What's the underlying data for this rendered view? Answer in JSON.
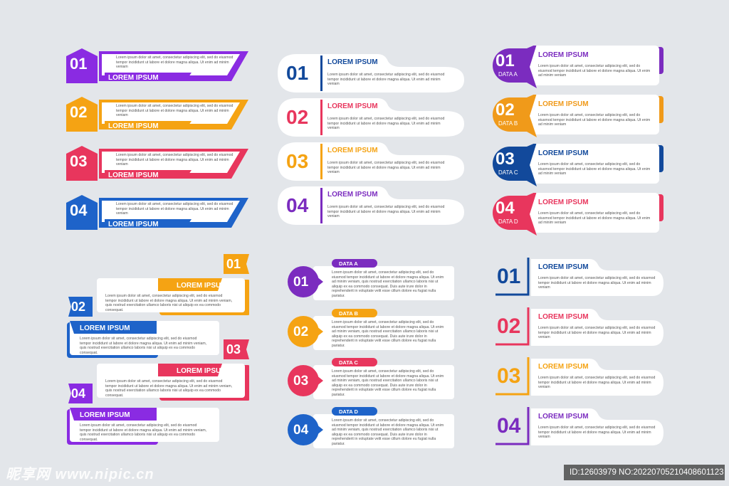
{
  "body_text": "Lorem ipsum dolor sit amet, consectetur adipiscing elit, sed do eiusmod tempor incididunt ut labore et dolore magna aliqua. Ut enim ad minim veniam",
  "body_text_long": "Lorem ipsum dolor sit amet, consectetur adipiscing elit, sed do eiusmod tempor incididunt ut labore et dolore magna aliqua. Ut enim ad minim veniam, quis nostrud exercitation ullamco laboris nisi ut aliquip ex ea commodo consequat.",
  "body_text_data": "Lorem ipsum dolor sit amet, consectetur adipiscing elit, sed do eiusmod tempor incididunt ut labore et dolore magna aliqua. Ut enim ad minim veniam, quis nostrud exercitation ullamco laboris nisi ut aliquip ex ea commodo consequat. Duis aute irure dolor in reprehenderit in voluptate velit esse cillum dolore eu fugiat nulla pariatur.",
  "colors": {
    "purple": "#7b2cbf",
    "orange": "#f5a313",
    "pink": "#e8365d",
    "blue": "#1e63c9",
    "navy": "#12499b",
    "background": "#e3e6ea"
  },
  "panel1": [
    {
      "num": "01",
      "title": "LOREM IPSUM",
      "color": "#8a2be2"
    },
    {
      "num": "02",
      "title": "LOREM IPSUM",
      "color": "#f5a313"
    },
    {
      "num": "03",
      "title": "LOREM IPSUM",
      "color": "#e8365d"
    },
    {
      "num": "04",
      "title": "LOREM IPSUM",
      "color": "#1e63c9"
    }
  ],
  "panel2": [
    {
      "num": "01",
      "title": "LOREM IPSUM",
      "color": "#12499b"
    },
    {
      "num": "02",
      "title": "LOREM IPSUM",
      "color": "#e8365d"
    },
    {
      "num": "03",
      "title": "LOREM IPSUM",
      "color": "#f5a313"
    },
    {
      "num": "04",
      "title": "LOREM IPSUM",
      "color": "#7b2cbf"
    }
  ],
  "panel3": [
    {
      "num": "01",
      "sub": "DATA A",
      "title": "LOREM IPSUM",
      "color": "#7b2cbf"
    },
    {
      "num": "02",
      "sub": "DATA B",
      "title": "LOREM IPSUM",
      "color": "#f09a1a"
    },
    {
      "num": "03",
      "sub": "DATA C",
      "title": "LOREM IPSUM",
      "color": "#12499b"
    },
    {
      "num": "04",
      "sub": "DATA D",
      "title": "LOREM IPSUM",
      "color": "#e8365d"
    }
  ],
  "panel4": [
    {
      "num": "01",
      "title": "LOREM IPSUM",
      "color": "#f5a313"
    },
    {
      "num": "02",
      "title": "LOREM IPSUM",
      "color": "#1e63c9"
    },
    {
      "num": "03",
      "title": "LOREM IPSUM",
      "color": "#e8365d"
    },
    {
      "num": "04",
      "title": "LOREM IPSUM",
      "color": "#8a2be2"
    }
  ],
  "panel5": [
    {
      "num": "01",
      "tag": "DATA A",
      "color": "#7b2cbf"
    },
    {
      "num": "02",
      "tag": "DATA B",
      "color": "#f5a313"
    },
    {
      "num": "03",
      "tag": "DATA C",
      "color": "#e8365d"
    },
    {
      "num": "04",
      "tag": "DATA D",
      "color": "#1e63c9"
    }
  ],
  "panel6": [
    {
      "num": "01",
      "title": "LOREM IPSUM",
      "color": "#12499b"
    },
    {
      "num": "02",
      "title": "LOREM IPSUM",
      "color": "#e8365d"
    },
    {
      "num": "03",
      "title": "LOREM IPSUM",
      "color": "#f5a313"
    },
    {
      "num": "04",
      "title": "LOREM IPSUM",
      "color": "#7b2cbf"
    }
  ],
  "watermark_left": "昵享网 www.nipic.cn",
  "watermark_right": "ID:12603979 NO:20220705210408601123"
}
